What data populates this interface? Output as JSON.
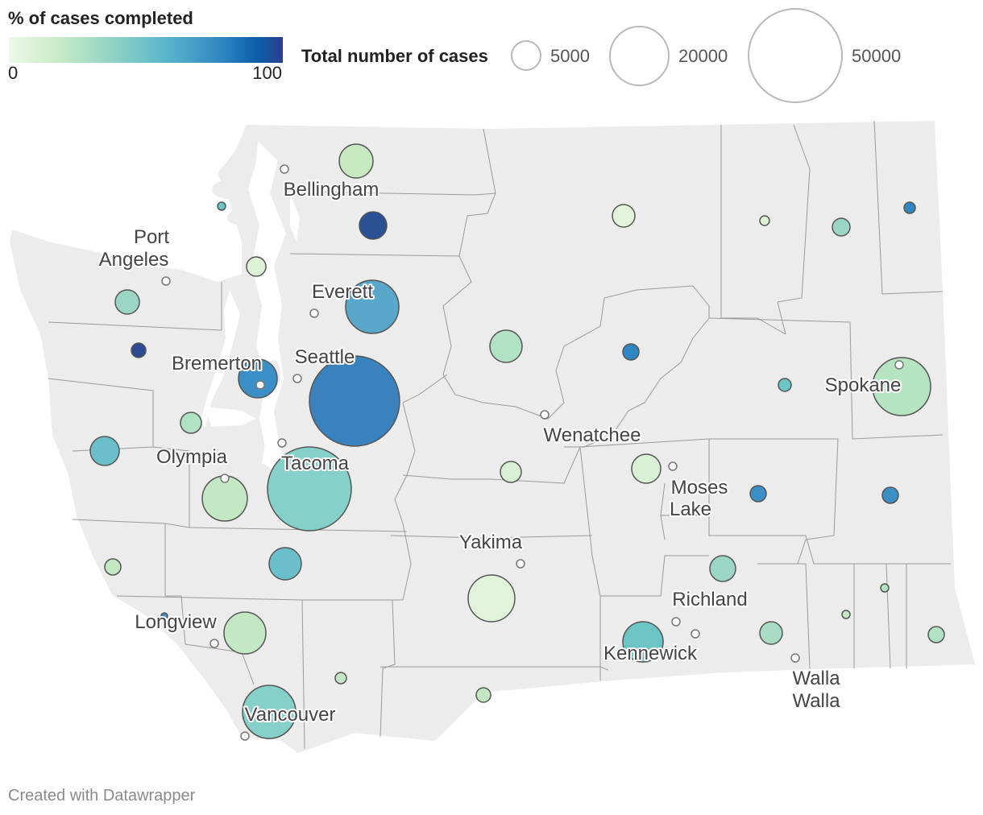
{
  "legend": {
    "color_title": "% of cases completed",
    "color_min": "0",
    "color_max": "100",
    "size_title": "Total number of cases",
    "size_items": [
      {
        "label": "5000",
        "value": 5000
      },
      {
        "label": "20000",
        "value": 20000
      },
      {
        "label": "50000",
        "value": 50000
      }
    ]
  },
  "colors": {
    "land": "#ececec",
    "county_border": "#9a9a9a",
    "bubble_stroke": "#555555",
    "city_dot": "#ffffff",
    "scale_low": "#eef8e8",
    "scale_mid": "#58b4cc",
    "scale_high": "#2b3f8e"
  },
  "cities": [
    {
      "name": "Bellingham"
    },
    {
      "name": "Port\nAngeles"
    },
    {
      "name": "Everett"
    },
    {
      "name": "Seattle"
    },
    {
      "name": "Bremerton"
    },
    {
      "name": "Olympia"
    },
    {
      "name": "Tacoma"
    },
    {
      "name": "Wenatchee"
    },
    {
      "name": "Spokane"
    },
    {
      "name": "Moses\nLake"
    },
    {
      "name": "Yakima"
    },
    {
      "name": "Richland"
    },
    {
      "name": "Kennewick"
    },
    {
      "name": "Walla\nWalla"
    },
    {
      "name": "Longview"
    },
    {
      "name": "Vancouver"
    }
  ],
  "footer": "Created with Datawrapper"
}
